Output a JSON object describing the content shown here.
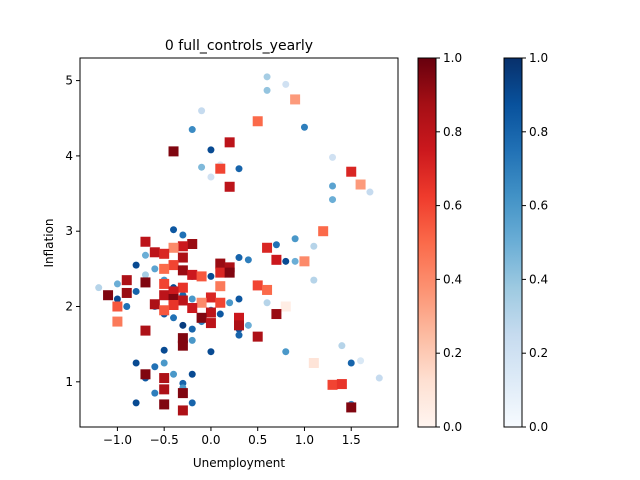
{
  "chart_data": {
    "type": "scatter",
    "title": "0 full_controls_yearly",
    "xlabel": "Unemployment",
    "ylabel": "Inflation",
    "xlim": [
      -1.4,
      2.0
    ],
    "ylim": [
      0.4,
      5.3
    ],
    "xticks": [
      -1.0,
      -0.5,
      0.0,
      0.5,
      1.0,
      1.5
    ],
    "yticks": [
      1,
      2,
      3,
      4,
      5
    ],
    "grid": false,
    "colorbars": [
      {
        "cmap": "Reds",
        "range": [
          0.0,
          1.0
        ],
        "ticks": [
          "0.0",
          "0.2",
          "0.4",
          "0.6",
          "0.8",
          "1.0"
        ]
      },
      {
        "cmap": "Blues",
        "range": [
          0.0,
          1.0
        ],
        "ticks": [
          "0.0",
          "0.2",
          "0.4",
          "0.6",
          "0.8",
          "1.0"
        ]
      }
    ],
    "series": [
      {
        "marker": "circle",
        "cmap": "Blues",
        "points": [
          [
            0.6,
            5.05,
            0.35
          ],
          [
            0.6,
            4.87,
            0.4
          ],
          [
            0.8,
            4.95,
            0.2
          ],
          [
            -0.1,
            4.6,
            0.25
          ],
          [
            1.0,
            4.38,
            0.7
          ],
          [
            -0.2,
            4.35,
            0.65
          ],
          [
            0.0,
            4.08,
            0.9
          ],
          [
            1.3,
            3.98,
            0.2
          ],
          [
            -0.1,
            3.85,
            0.45
          ],
          [
            0.1,
            3.88,
            0.15
          ],
          [
            0.3,
            3.83,
            0.8
          ],
          [
            1.3,
            3.6,
            0.55
          ],
          [
            1.3,
            3.42,
            0.5
          ],
          [
            1.7,
            3.52,
            0.25
          ],
          [
            0.0,
            3.72,
            0.2
          ],
          [
            -0.4,
            3.02,
            0.85
          ],
          [
            -0.3,
            2.95,
            0.75
          ],
          [
            0.9,
            2.9,
            0.6
          ],
          [
            1.1,
            2.8,
            0.3
          ],
          [
            0.7,
            2.82,
            0.75
          ],
          [
            -0.5,
            2.7,
            0.6
          ],
          [
            -0.7,
            2.68,
            0.5
          ],
          [
            0.3,
            2.65,
            0.8
          ],
          [
            0.4,
            2.62,
            0.7
          ],
          [
            0.8,
            2.6,
            0.9
          ],
          [
            0.9,
            2.6,
            0.5
          ],
          [
            -0.8,
            2.55,
            0.9
          ],
          [
            -0.3,
            2.5,
            0.7
          ],
          [
            -0.2,
            2.4,
            0.75
          ],
          [
            -0.6,
            2.5,
            0.55
          ],
          [
            1.1,
            2.35,
            0.3
          ],
          [
            0.0,
            2.4,
            0.9
          ],
          [
            -1.2,
            2.25,
            0.3
          ],
          [
            -1.0,
            2.3,
            0.5
          ],
          [
            -0.8,
            2.2,
            0.8
          ],
          [
            -0.7,
            2.42,
            0.35
          ],
          [
            -0.5,
            2.35,
            0.6
          ],
          [
            -0.4,
            2.25,
            0.9
          ],
          [
            -0.3,
            2.15,
            0.8
          ],
          [
            -0.2,
            2.1,
            0.6
          ],
          [
            -0.1,
            2.05,
            0.9
          ],
          [
            0.0,
            1.95,
            0.7
          ],
          [
            0.1,
            1.9,
            0.85
          ],
          [
            0.2,
            2.05,
            0.6
          ],
          [
            0.3,
            2.1,
            0.85
          ],
          [
            0.5,
            2.3,
            0.6
          ],
          [
            0.6,
            2.05,
            0.3
          ],
          [
            0.8,
            2.0,
            0.2
          ],
          [
            -0.9,
            2.0,
            0.75
          ],
          [
            -1.0,
            2.1,
            0.9
          ],
          [
            -0.6,
            2.0,
            0.7
          ],
          [
            -0.5,
            1.9,
            0.85
          ],
          [
            -0.4,
            1.85,
            0.75
          ],
          [
            -0.3,
            1.75,
            0.95
          ],
          [
            -0.2,
            1.7,
            0.8
          ],
          [
            -0.1,
            1.8,
            0.7
          ],
          [
            0.3,
            1.7,
            0.85
          ],
          [
            0.4,
            1.75,
            0.5
          ],
          [
            0.3,
            1.62,
            0.8
          ],
          [
            -0.2,
            1.55,
            0.6
          ],
          [
            -0.5,
            1.42,
            0.9
          ],
          [
            0.0,
            1.4,
            0.9
          ],
          [
            0.8,
            1.4,
            0.6
          ],
          [
            1.4,
            1.48,
            0.3
          ],
          [
            -0.8,
            1.25,
            0.9
          ],
          [
            -0.6,
            1.2,
            0.75
          ],
          [
            -0.5,
            1.25,
            0.6
          ],
          [
            1.5,
            1.25,
            0.8
          ],
          [
            1.6,
            1.28,
            0.15
          ],
          [
            -0.4,
            1.1,
            0.6
          ],
          [
            -0.2,
            1.1,
            0.9
          ],
          [
            1.8,
            1.05,
            0.25
          ],
          [
            -0.7,
            1.05,
            0.85
          ],
          [
            -0.3,
            0.98,
            0.8
          ],
          [
            -0.6,
            0.85,
            0.7
          ],
          [
            -0.3,
            0.92,
            0.6
          ],
          [
            -0.8,
            0.72,
            0.9
          ],
          [
            -0.5,
            0.7,
            0.6
          ],
          [
            -0.2,
            0.72,
            0.8
          ],
          [
            1.5,
            0.7,
            0.65
          ]
        ]
      },
      {
        "marker": "square",
        "cmap": "Reds",
        "points": [
          [
            0.9,
            4.75,
            0.35
          ],
          [
            0.5,
            4.46,
            0.5
          ],
          [
            0.2,
            4.18,
            0.8
          ],
          [
            -0.4,
            4.06,
            0.95
          ],
          [
            0.1,
            3.83,
            0.6
          ],
          [
            1.5,
            3.79,
            0.7
          ],
          [
            1.6,
            3.62,
            0.35
          ],
          [
            0.2,
            3.59,
            0.8
          ],
          [
            1.2,
            3.0,
            0.5
          ],
          [
            -0.7,
            2.86,
            0.8
          ],
          [
            -0.2,
            2.83,
            0.9
          ],
          [
            -0.3,
            2.8,
            0.75
          ],
          [
            -0.4,
            2.78,
            0.4
          ],
          [
            0.6,
            2.78,
            0.7
          ],
          [
            -0.6,
            2.72,
            0.8
          ],
          [
            -0.5,
            2.7,
            0.7
          ],
          [
            -0.3,
            2.65,
            0.85
          ],
          [
            0.7,
            2.62,
            0.75
          ],
          [
            1.0,
            2.6,
            0.4
          ],
          [
            0.1,
            2.57,
            0.9
          ],
          [
            -0.4,
            2.55,
            0.6
          ],
          [
            0.2,
            2.52,
            0.85
          ],
          [
            -0.5,
            2.5,
            0.5
          ],
          [
            -0.3,
            2.48,
            0.9
          ],
          [
            0.1,
            2.45,
            0.7
          ],
          [
            0.2,
            2.45,
            0.95
          ],
          [
            -0.2,
            2.42,
            0.75
          ],
          [
            -0.1,
            2.4,
            0.55
          ],
          [
            -0.9,
            2.35,
            0.85
          ],
          [
            -0.7,
            2.32,
            0.95
          ],
          [
            -0.5,
            2.3,
            0.6
          ],
          [
            0.5,
            2.28,
            0.6
          ],
          [
            0.1,
            2.27,
            0.45
          ],
          [
            -0.3,
            2.25,
            0.65
          ],
          [
            0.6,
            2.22,
            0.5
          ],
          [
            -0.4,
            2.2,
            0.75
          ],
          [
            -0.9,
            2.18,
            0.9
          ],
          [
            -1.1,
            2.15,
            0.95
          ],
          [
            -0.5,
            2.15,
            0.8
          ],
          [
            0.0,
            2.12,
            0.7
          ],
          [
            -0.4,
            2.1,
            0.95
          ],
          [
            -0.3,
            2.08,
            0.8
          ],
          [
            -0.1,
            2.05,
            0.4
          ],
          [
            0.1,
            2.05,
            0.6
          ],
          [
            -0.6,
            2.03,
            0.85
          ],
          [
            -0.4,
            2.02,
            0.65
          ],
          [
            -1.0,
            2.0,
            0.55
          ],
          [
            -0.2,
            1.98,
            0.75
          ],
          [
            0.8,
            2.0,
            0.05
          ],
          [
            -0.5,
            1.95,
            0.55
          ],
          [
            0.0,
            1.92,
            0.8
          ],
          [
            0.7,
            1.9,
            0.9
          ],
          [
            -0.1,
            1.85,
            0.95
          ],
          [
            0.3,
            1.85,
            0.75
          ],
          [
            -1.0,
            1.8,
            0.45
          ],
          [
            0.0,
            1.78,
            0.8
          ],
          [
            0.3,
            1.75,
            0.85
          ],
          [
            -0.7,
            1.68,
            0.85
          ],
          [
            0.5,
            1.6,
            0.85
          ],
          [
            -0.3,
            1.58,
            0.95
          ],
          [
            -0.3,
            1.48,
            0.95
          ],
          [
            1.1,
            1.25,
            0.1
          ],
          [
            -0.7,
            1.1,
            0.95
          ],
          [
            -0.5,
            1.05,
            0.85
          ],
          [
            1.3,
            0.96,
            0.6
          ],
          [
            1.4,
            0.97,
            0.65
          ],
          [
            -0.5,
            0.9,
            0.85
          ],
          [
            -0.3,
            0.85,
            0.95
          ],
          [
            -0.5,
            0.7,
            0.95
          ],
          [
            -0.3,
            0.62,
            0.85
          ],
          [
            1.5,
            0.66,
            0.95
          ]
        ]
      }
    ]
  }
}
